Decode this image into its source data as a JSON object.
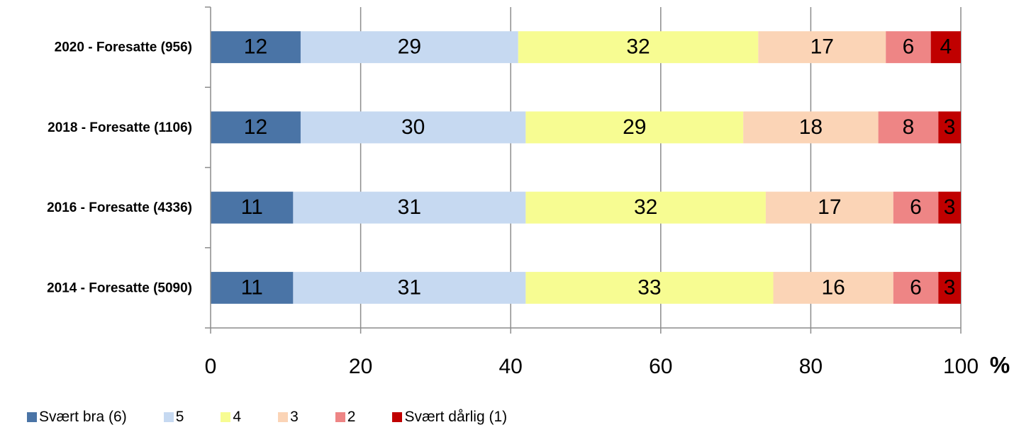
{
  "chart_data": {
    "type": "bar",
    "orientation": "horizontal",
    "stacked": true,
    "title": "",
    "xlabel": "",
    "ylabel": "",
    "unit_label": "%",
    "xlim": [
      0,
      100
    ],
    "x_ticks": [
      0,
      20,
      40,
      60,
      80,
      100
    ],
    "grid": "vertical",
    "legend_position": "bottom-left",
    "categories": [
      "2020 - Foresatte (956)",
      "2018 - Foresatte (1106)",
      "2016 - Foresatte (4336)",
      "2014 - Foresatte (5090)"
    ],
    "series": [
      {
        "name": "Svært bra (6)",
        "color": "#4a74a6",
        "values": [
          12,
          12,
          11,
          11
        ]
      },
      {
        "name": "5",
        "color": "#c6d9f1",
        "values": [
          29,
          30,
          31,
          31
        ]
      },
      {
        "name": "4",
        "color": "#f7fc92",
        "values": [
          32,
          29,
          32,
          33
        ]
      },
      {
        "name": "3",
        "color": "#fbd4b6",
        "values": [
          17,
          18,
          17,
          16
        ]
      },
      {
        "name": "2",
        "color": "#ee8585",
        "values": [
          6,
          8,
          6,
          6
        ]
      },
      {
        "name": "Svært dårlig (1)",
        "color": "#c00000",
        "values": [
          4,
          3,
          3,
          3
        ]
      }
    ]
  }
}
